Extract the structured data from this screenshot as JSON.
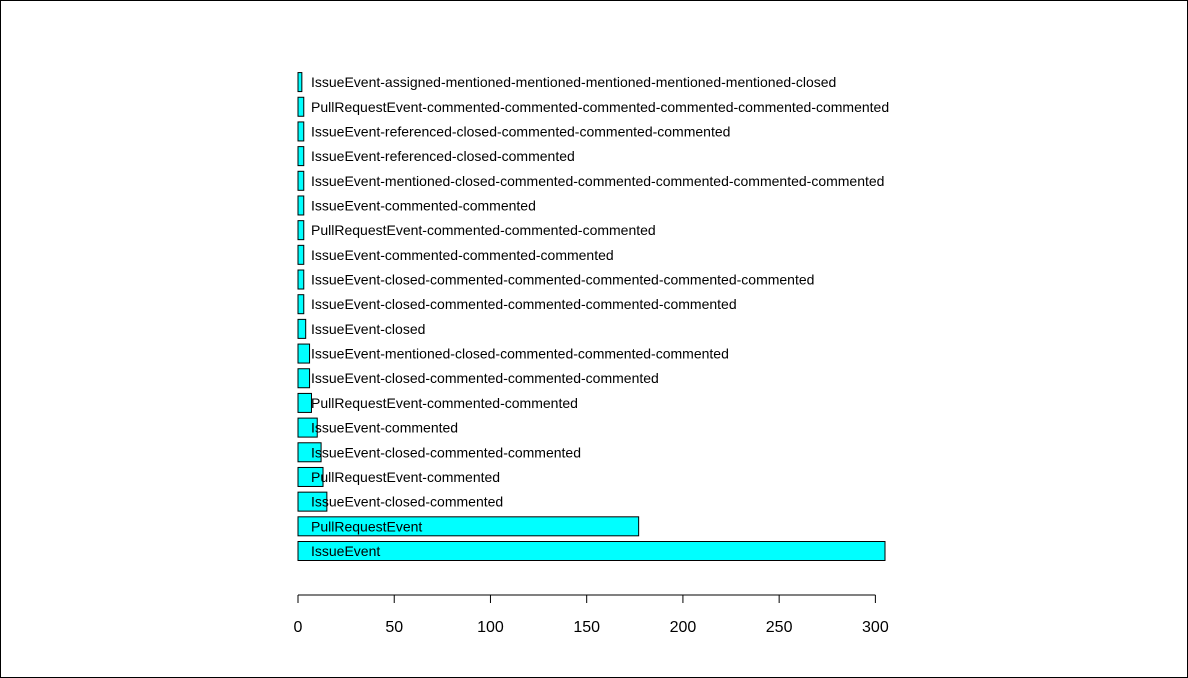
{
  "chart_data": {
    "type": "bar",
    "orientation": "horizontal",
    "bar_color": "#00ffff",
    "categories": [
      "IssueEvent",
      "PullRequestEvent",
      "IssueEvent-closed-commented",
      "PullRequestEvent-commented",
      "IssueEvent-closed-commented-commented",
      "IssueEvent-commented",
      "PullRequestEvent-commented-commented",
      "IssueEvent-closed-commented-commented-commented",
      "IssueEvent-mentioned-closed-commented-commented-commented",
      "IssueEvent-closed",
      "IssueEvent-closed-commented-commented-commented-commented",
      "IssueEvent-closed-commented-commented-commented-commented-commented",
      "IssueEvent-commented-commented-commented",
      "PullRequestEvent-commented-commented-commented",
      "IssueEvent-commented-commented",
      "IssueEvent-mentioned-closed-commented-commented-commented-commented-commented",
      "IssueEvent-referenced-closed-commented",
      "IssueEvent-referenced-closed-commented-commented-commented",
      "PullRequestEvent-commented-commented-commented-commented-commented-commented",
      "IssueEvent-assigned-mentioned-mentioned-mentioned-mentioned-mentioned-closed"
    ],
    "values": [
      305,
      177,
      15,
      13,
      12,
      10,
      7,
      6,
      6,
      4,
      3,
      3,
      3,
      3,
      3,
      3,
      3,
      3,
      3,
      2
    ],
    "xlim": [
      0,
      305
    ],
    "xticks": [
      "0",
      "50",
      "100",
      "150",
      "200",
      "250",
      "300"
    ],
    "grid": false,
    "title": "",
    "xlabel": "",
    "ylabel": ""
  }
}
